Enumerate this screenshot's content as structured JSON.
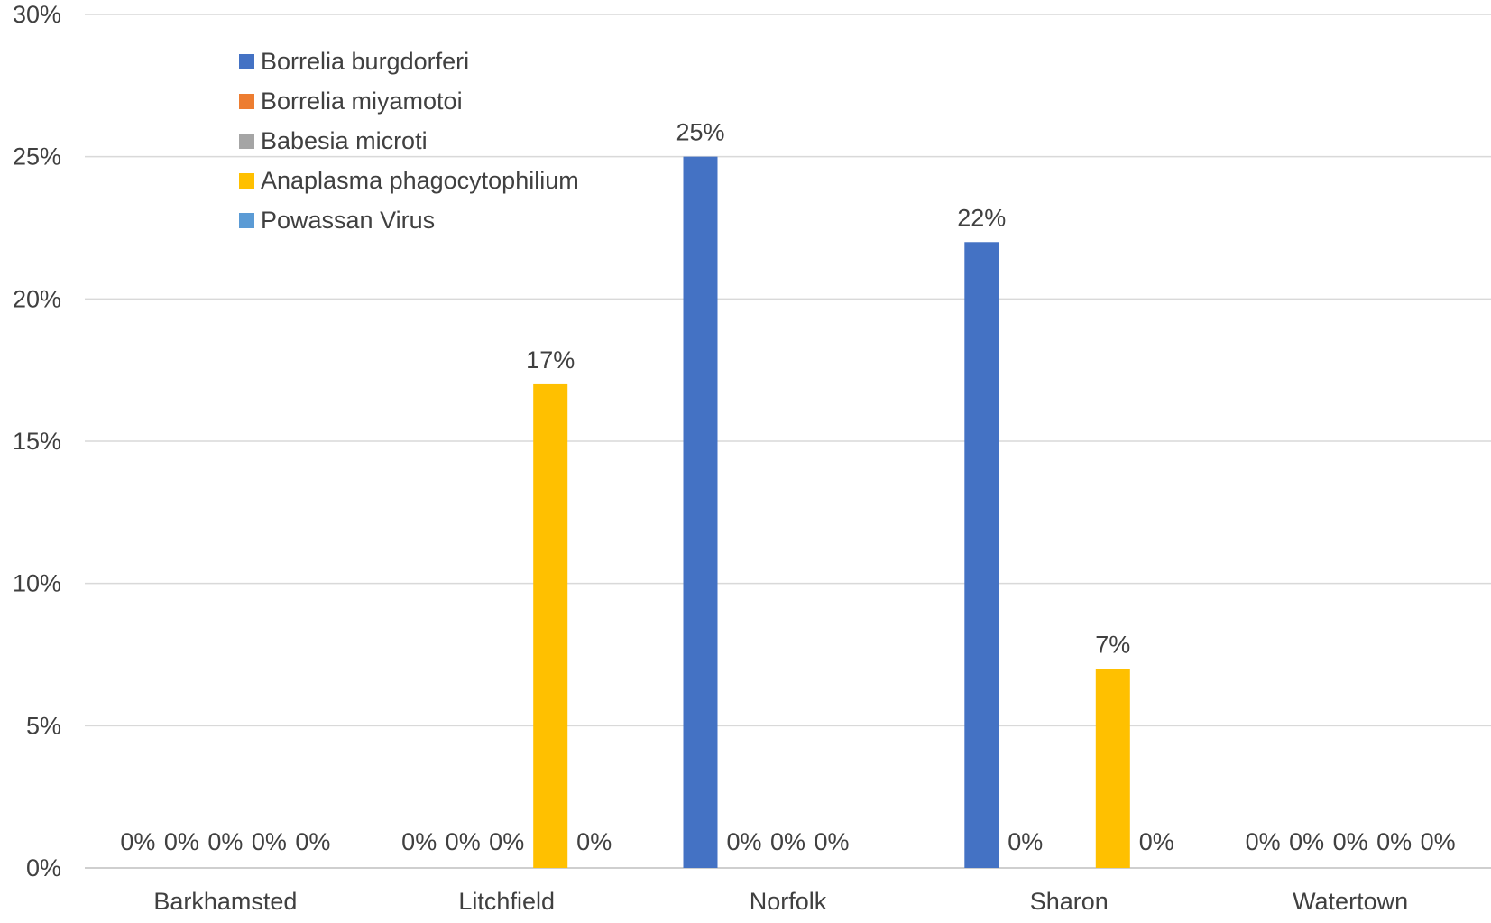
{
  "chart_data": {
    "type": "bar",
    "title": "",
    "xlabel": "",
    "ylabel": "",
    "categories": [
      "Barkhamsted",
      "Litchfield",
      "Norfolk",
      "Sharon",
      "Watertown"
    ],
    "ylim": [
      0,
      30
    ],
    "yticks": [
      0,
      5,
      10,
      15,
      20,
      25,
      30
    ],
    "ytick_labels": [
      "0%",
      "5%",
      "10%",
      "15%",
      "20%",
      "25%",
      "30%"
    ],
    "grid": true,
    "legend_position": "top-left",
    "series": [
      {
        "name": "Borrelia burgdorferi",
        "color": "#4472C4",
        "values": [
          0,
          0,
          25,
          22,
          0
        ],
        "labels": [
          "0%",
          "0%",
          "25%",
          "22%",
          "0%"
        ]
      },
      {
        "name": "Borrelia miyamotoi",
        "color": "#ED7D31",
        "values": [
          0,
          0,
          0,
          0,
          0
        ],
        "labels": [
          "0%",
          "0%",
          "0%",
          "0%",
          "0%"
        ]
      },
      {
        "name": "Babesia microti",
        "color": "#A5A5A5",
        "values": [
          0,
          0,
          0,
          null,
          0
        ],
        "labels": [
          "0%",
          "0%",
          "0%",
          null,
          "0%"
        ]
      },
      {
        "name": "Anaplasma phagocytophilium",
        "color": "#FFC000",
        "values": [
          0,
          17,
          0,
          7,
          0
        ],
        "labels": [
          "0%",
          "17%",
          "0%",
          "7%",
          "0%"
        ]
      },
      {
        "name": "Powassan Virus",
        "color": "#5B9BD5",
        "values": [
          0,
          0,
          null,
          0,
          0
        ],
        "labels": [
          "0%",
          "0%",
          null,
          "0%",
          "0%"
        ]
      }
    ]
  }
}
